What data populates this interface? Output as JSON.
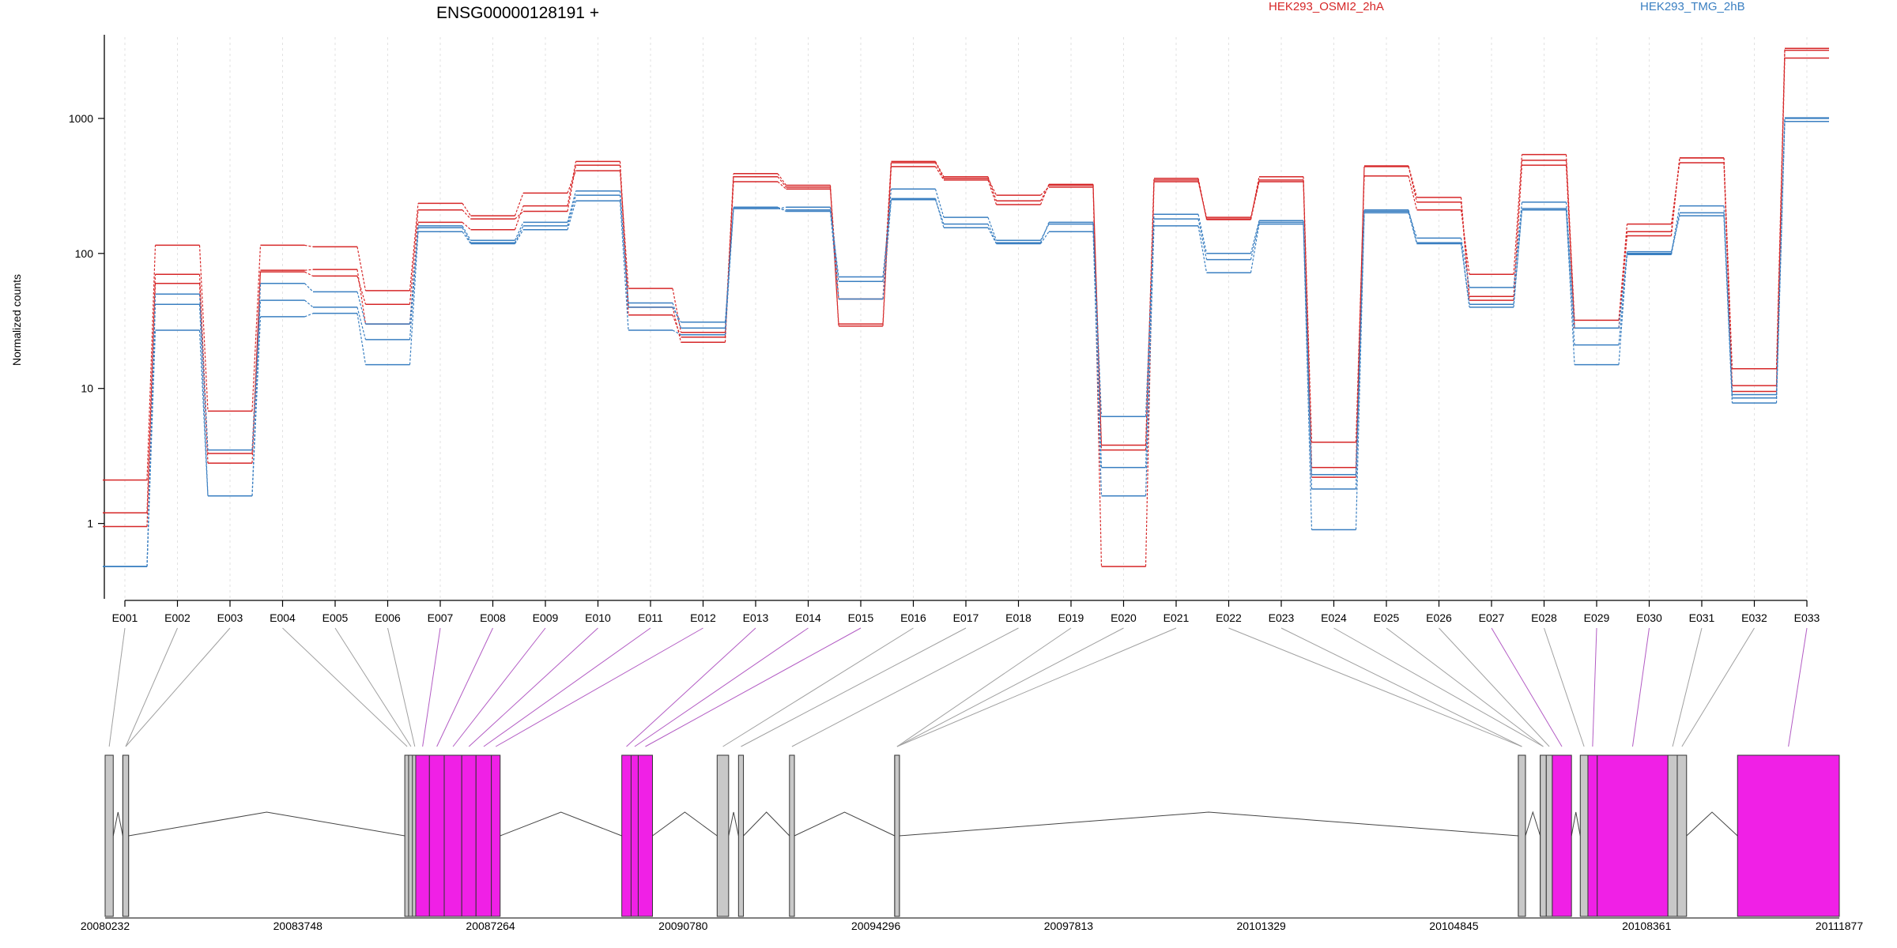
{
  "chart_data": {
    "type": "line",
    "title": "ENSG00000128191 +",
    "ylabel": "Normalized counts",
    "y_scale": "log",
    "ylim": [
      0.3,
      4000
    ],
    "y_ticks": [
      1,
      10,
      100,
      1000
    ],
    "y_tick_labels": [
      "1",
      "10",
      "100",
      "1000"
    ],
    "categories": [
      "E001",
      "E002",
      "E003",
      "E004",
      "E005",
      "E006",
      "E007",
      "E008",
      "E009",
      "E010",
      "E011",
      "E012",
      "E013",
      "E014",
      "E015",
      "E016",
      "E017",
      "E018",
      "E019",
      "E020",
      "E021",
      "E022",
      "E023",
      "E024",
      "E025",
      "E026",
      "E027",
      "E028",
      "E029",
      "E030",
      "E031",
      "E032",
      "E033"
    ],
    "legend": [
      {
        "name": "HEK293_OSMI2_2hA",
        "color": "#d62728"
      },
      {
        "name": "HEK293_TMG_2hB",
        "color": "#3a7fc1"
      }
    ],
    "grid": true,
    "series": [
      {
        "group": "HEK293_OSMI2_2hA",
        "color": "#d62728",
        "values": [
          1.2,
          70,
          3.3,
          73,
          68,
          42,
          210,
          180,
          205,
          450,
          35,
          24,
          340,
          300,
          46,
          480,
          370,
          245,
          320,
          3.5,
          360,
          180,
          370,
          2.2,
          445,
          260,
          48,
          450,
          28,
          145,
          510,
          9.5,
          3300
        ]
      },
      {
        "group": "HEK293_OSMI2_2hA",
        "color": "#d62728",
        "values": [
          0.95,
          60,
          2.8,
          75,
          76,
          30,
          170,
          150,
          225,
          480,
          40,
          22,
          370,
          310,
          30,
          470,
          360,
          270,
          310,
          3.8,
          350,
          178,
          340,
          2.6,
          440,
          240,
          45,
          490,
          28,
          135,
          510,
          14,
          3200
        ]
      },
      {
        "group": "HEK293_OSMI2_2hA",
        "color": "#d62728",
        "values": [
          2.1,
          115,
          6.8,
          115,
          112,
          53,
          235,
          190,
          280,
          410,
          55,
          26,
          390,
          320,
          29,
          440,
          350,
          230,
          325,
          0.48,
          340,
          185,
          350,
          4,
          375,
          210,
          70,
          540,
          32,
          165,
          470,
          10.5,
          2800
        ]
      },
      {
        "group": "HEK293_TMG_2hB",
        "color": "#3a7fc1",
        "values": [
          0.48,
          42,
          1.6,
          60,
          52,
          30,
          155,
          120,
          160,
          270,
          40,
          31,
          215,
          220,
          62,
          300,
          185,
          125,
          165,
          2.6,
          195,
          100,
          175,
          2.3,
          205,
          130,
          56,
          240,
          28,
          100,
          225,
          9,
          1000
        ]
      },
      {
        "group": "HEK293_TMG_2hB",
        "color": "#3a7fc1",
        "values": [
          0.48,
          50,
          3.5,
          45,
          40,
          23,
          160,
          125,
          170,
          290,
          43,
          28,
          220,
          205,
          46,
          250,
          165,
          120,
          170,
          6.2,
          180,
          90,
          170,
          1.8,
          210,
          120,
          40,
          215,
          21,
          98,
          200,
          8.5,
          1010
        ]
      },
      {
        "group": "HEK293_TMG_2hB",
        "color": "#3a7fc1",
        "values": [
          0.48,
          27,
          1.6,
          34,
          36,
          15,
          145,
          118,
          150,
          245,
          27,
          25,
          215,
          210,
          67,
          255,
          155,
          118,
          145,
          1.6,
          160,
          72,
          165,
          0.9,
          200,
          118,
          42,
          210,
          15,
          103,
          190,
          7.8,
          950
        ]
      }
    ],
    "gene_model": {
      "x_tick_labels": [
        "20080232",
        "20083748",
        "20087264",
        "20090780",
        "20094296",
        "20097813",
        "20101329",
        "20104845",
        "20108361",
        "20111877"
      ],
      "xlim": [
        20080232,
        20111877
      ],
      "exons": [
        {
          "id": "E001",
          "start": 20080232,
          "end": 20080380,
          "tested": false
        },
        {
          "id": "E002",
          "start": 20080555,
          "end": 20080660,
          "tested": false
        },
        {
          "id": "E003",
          "start": 20080555,
          "end": 20080660,
          "tested": false
        },
        {
          "id": "E004",
          "start": 20085700,
          "end": 20085770,
          "tested": false
        },
        {
          "id": "E005",
          "start": 20085770,
          "end": 20085840,
          "tested": false
        },
        {
          "id": "E006",
          "start": 20085840,
          "end": 20085900,
          "tested": false
        },
        {
          "id": "E007",
          "start": 20085900,
          "end": 20086150,
          "tested": true
        },
        {
          "id": "E008",
          "start": 20086150,
          "end": 20086420,
          "tested": true
        },
        {
          "id": "E009",
          "start": 20086420,
          "end": 20086740,
          "tested": true
        },
        {
          "id": "E010",
          "start": 20086740,
          "end": 20087000,
          "tested": true
        },
        {
          "id": "E011",
          "start": 20087000,
          "end": 20087280,
          "tested": true
        },
        {
          "id": "E012",
          "start": 20087280,
          "end": 20087440,
          "tested": true
        },
        {
          "id": "E013",
          "start": 20089660,
          "end": 20089830,
          "tested": true
        },
        {
          "id": "E014",
          "start": 20089830,
          "end": 20089960,
          "tested": true
        },
        {
          "id": "E015",
          "start": 20089960,
          "end": 20090220,
          "tested": true
        },
        {
          "id": "E016",
          "start": 20091400,
          "end": 20091610,
          "tested": false
        },
        {
          "id": "E017",
          "start": 20091790,
          "end": 20091880,
          "tested": false
        },
        {
          "id": "E018",
          "start": 20092720,
          "end": 20092810,
          "tested": false
        },
        {
          "id": "E019",
          "start": 20094640,
          "end": 20094720,
          "tested": false
        },
        {
          "id": "E020",
          "start": 20094640,
          "end": 20094720,
          "tested": false
        },
        {
          "id": "E021",
          "start": 20094640,
          "end": 20094720,
          "tested": false
        },
        {
          "id": "E022",
          "start": 20106020,
          "end": 20106150,
          "tested": false
        },
        {
          "id": "E023",
          "start": 20106020,
          "end": 20106150,
          "tested": false
        },
        {
          "id": "E024",
          "start": 20106420,
          "end": 20106530,
          "tested": false
        },
        {
          "id": "E025",
          "start": 20106420,
          "end": 20106530,
          "tested": false
        },
        {
          "id": "E026",
          "start": 20106530,
          "end": 20106640,
          "tested": false
        },
        {
          "id": "E027",
          "start": 20106640,
          "end": 20106990,
          "tested": true
        },
        {
          "id": "E028",
          "start": 20107150,
          "end": 20107290,
          "tested": false
        },
        {
          "id": "E029",
          "start": 20107290,
          "end": 20107460,
          "tested": true
        },
        {
          "id": "E030",
          "start": 20107460,
          "end": 20108750,
          "tested": true
        },
        {
          "id": "E031",
          "start": 20108750,
          "end": 20108920,
          "tested": false
        },
        {
          "id": "E032",
          "start": 20108920,
          "end": 20109090,
          "tested": false
        },
        {
          "id": "E033",
          "start": 20110020,
          "end": 20111877,
          "tested": true
        }
      ]
    }
  }
}
